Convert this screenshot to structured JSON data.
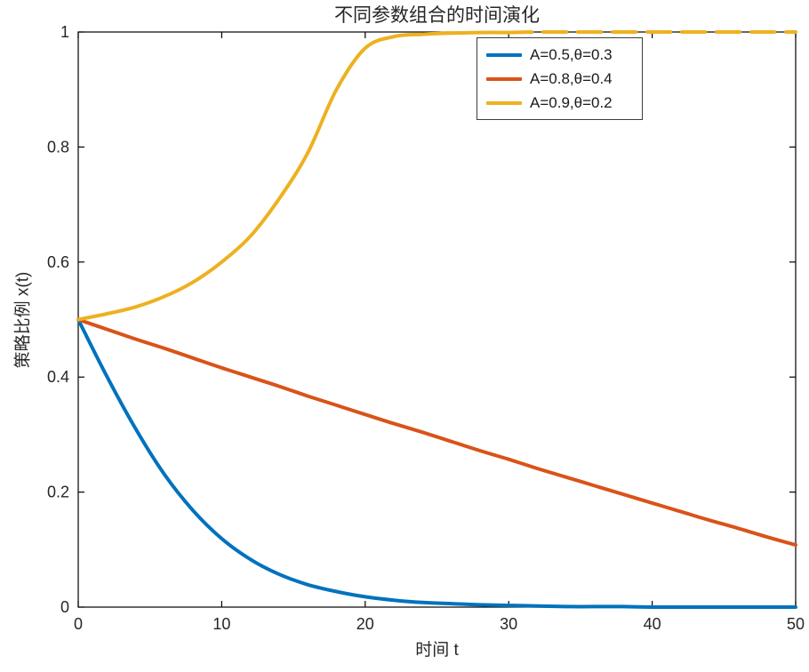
{
  "chart_data": {
    "type": "line",
    "title": "不同参数组合的时间演化",
    "xlabel": "时间 t",
    "ylabel": "策略比例 x(t)",
    "xlim": [
      0,
      50
    ],
    "ylim": [
      0,
      1
    ],
    "xticks": [
      0,
      10,
      20,
      30,
      40,
      50
    ],
    "yticks": [
      0,
      0.2,
      0.4,
      0.6,
      0.8,
      1
    ],
    "grid": false,
    "legend_position": "upper-center-right",
    "axis_color": "#000000",
    "tick_label_color": "#262626",
    "x": [
      0,
      2,
      4,
      6,
      8,
      10,
      12,
      14,
      16,
      18,
      20,
      22,
      24,
      26,
      28,
      30,
      32,
      34,
      36,
      38,
      40,
      42,
      44,
      46,
      48,
      50
    ],
    "series": [
      {
        "name": "A=0.5,θ=0.3",
        "color": "#0072BD",
        "values": [
          0.5,
          0.401,
          0.31,
          0.231,
          0.168,
          0.119,
          0.083,
          0.057,
          0.039,
          0.027,
          0.018,
          0.012,
          0.008,
          0.006,
          0.004,
          0.003,
          0.002,
          0.001,
          0.001,
          0.001,
          0,
          0,
          0,
          0,
          0,
          0
        ]
      },
      {
        "name": "A=0.8,θ=0.4",
        "color": "#D95319",
        "values": [
          0.5,
          0.483,
          0.466,
          0.45,
          0.433,
          0.416,
          0.4,
          0.384,
          0.367,
          0.351,
          0.335,
          0.319,
          0.304,
          0.288,
          0.272,
          0.257,
          0.241,
          0.226,
          0.211,
          0.196,
          0.181,
          0.166,
          0.151,
          0.137,
          0.122,
          0.108
        ]
      },
      {
        "name": "A=0.9,θ=0.2",
        "color": "#EDB120",
        "values": [
          0.5,
          0.51,
          0.522,
          0.54,
          0.565,
          0.6,
          0.645,
          0.71,
          0.79,
          0.9,
          0.972,
          0.992,
          0.996,
          0.998,
          0.999,
          0.999,
          1,
          1,
          1,
          1,
          1,
          1,
          1,
          1,
          1,
          1
        ],
        "dash_tail_from_x": 30
      }
    ]
  }
}
